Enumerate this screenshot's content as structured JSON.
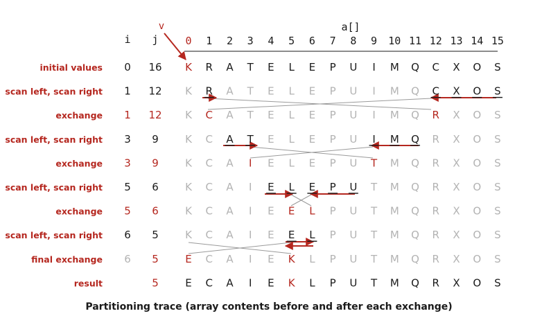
{
  "colors": {
    "red": "#b5271f",
    "gray": "#b3b3b3",
    "black": "#1a1a1a",
    "arrow": "#b5271f"
  },
  "header": {
    "array_label": "a[]",
    "v_label": "v",
    "i_label": "i",
    "j_label": "j",
    "indices": [
      "0",
      "1",
      "2",
      "3",
      "4",
      "5",
      "6",
      "7",
      "8",
      "9",
      "10",
      "11",
      "12",
      "13",
      "14",
      "15"
    ]
  },
  "rows": [
    {
      "label": "initial values",
      "i": "0",
      "j": "16",
      "ij_color": "black",
      "letters": [
        "K",
        "R",
        "A",
        "T",
        "E",
        "L",
        "E",
        "P",
        "U",
        "I",
        "M",
        "Q",
        "C",
        "X",
        "O",
        "S"
      ],
      "colors": [
        "red",
        "black",
        "black",
        "black",
        "black",
        "black",
        "black",
        "black",
        "black",
        "black",
        "black",
        "black",
        "black",
        "black",
        "black",
        "black"
      ],
      "underline": []
    },
    {
      "label": "scan left, scan right",
      "i": "1",
      "j": "12",
      "ij_color": "black",
      "letters": [
        "K",
        "R",
        "A",
        "T",
        "E",
        "L",
        "E",
        "P",
        "U",
        "I",
        "M",
        "Q",
        "C",
        "X",
        "O",
        "S"
      ],
      "colors": [
        "gray",
        "black",
        "gray",
        "gray",
        "gray",
        "gray",
        "gray",
        "gray",
        "gray",
        "gray",
        "gray",
        "gray",
        "black",
        "black",
        "black",
        "black"
      ],
      "underline": [
        1,
        12,
        13,
        14,
        15
      ]
    },
    {
      "label": "exchange",
      "i": "1",
      "j": "12",
      "ij_color": "red",
      "letters": [
        "K",
        "C",
        "A",
        "T",
        "E",
        "L",
        "E",
        "P",
        "U",
        "I",
        "M",
        "Q",
        "R",
        "X",
        "O",
        "S"
      ],
      "colors": [
        "gray",
        "red",
        "gray",
        "gray",
        "gray",
        "gray",
        "gray",
        "gray",
        "gray",
        "gray",
        "gray",
        "gray",
        "red",
        "gray",
        "gray",
        "gray"
      ],
      "underline": []
    },
    {
      "label": "scan left, scan right",
      "i": "3",
      "j": "9",
      "ij_color": "black",
      "letters": [
        "K",
        "C",
        "A",
        "T",
        "E",
        "L",
        "E",
        "P",
        "U",
        "I",
        "M",
        "Q",
        "R",
        "X",
        "O",
        "S"
      ],
      "colors": [
        "gray",
        "gray",
        "black",
        "black",
        "gray",
        "gray",
        "gray",
        "gray",
        "gray",
        "black",
        "black",
        "black",
        "gray",
        "gray",
        "gray",
        "gray"
      ],
      "underline": [
        2,
        3,
        9,
        10,
        11
      ]
    },
    {
      "label": "exchange",
      "i": "3",
      "j": "9",
      "ij_color": "red",
      "letters": [
        "K",
        "C",
        "A",
        "I",
        "E",
        "L",
        "E",
        "P",
        "U",
        "T",
        "M",
        "Q",
        "R",
        "X",
        "O",
        "S"
      ],
      "colors": [
        "gray",
        "gray",
        "gray",
        "red",
        "gray",
        "gray",
        "gray",
        "gray",
        "gray",
        "red",
        "gray",
        "gray",
        "gray",
        "gray",
        "gray",
        "gray"
      ],
      "underline": []
    },
    {
      "label": "scan left, scan right",
      "i": "5",
      "j": "6",
      "ij_color": "black",
      "letters": [
        "K",
        "C",
        "A",
        "I",
        "E",
        "L",
        "E",
        "P",
        "U",
        "T",
        "M",
        "Q",
        "R",
        "X",
        "O",
        "S"
      ],
      "colors": [
        "gray",
        "gray",
        "gray",
        "gray",
        "black",
        "black",
        "black",
        "black",
        "black",
        "gray",
        "gray",
        "gray",
        "gray",
        "gray",
        "gray",
        "gray"
      ],
      "underline": [
        4,
        5,
        6,
        7,
        8
      ]
    },
    {
      "label": "exchange",
      "i": "5",
      "j": "6",
      "ij_color": "red",
      "letters": [
        "K",
        "C",
        "A",
        "I",
        "E",
        "E",
        "L",
        "P",
        "U",
        "T",
        "M",
        "Q",
        "R",
        "X",
        "O",
        "S"
      ],
      "colors": [
        "gray",
        "gray",
        "gray",
        "gray",
        "gray",
        "red",
        "red",
        "gray",
        "gray",
        "gray",
        "gray",
        "gray",
        "gray",
        "gray",
        "gray",
        "gray"
      ],
      "underline": []
    },
    {
      "label": "scan left, scan right",
      "i": "6",
      "j": "5",
      "ij_color": "black",
      "letters": [
        "K",
        "C",
        "A",
        "I",
        "E",
        "E",
        "L",
        "P",
        "U",
        "T",
        "M",
        "Q",
        "R",
        "X",
        "O",
        "S"
      ],
      "colors": [
        "gray",
        "gray",
        "gray",
        "gray",
        "gray",
        "black",
        "black",
        "gray",
        "gray",
        "gray",
        "gray",
        "gray",
        "gray",
        "gray",
        "gray",
        "gray"
      ],
      "underline": [
        5,
        6
      ]
    },
    {
      "label": "final exchange",
      "i": "6",
      "j": "5",
      "ij_color": "split",
      "letters": [
        "E",
        "C",
        "A",
        "I",
        "E",
        "K",
        "L",
        "P",
        "U",
        "T",
        "M",
        "Q",
        "R",
        "X",
        "O",
        "S"
      ],
      "colors": [
        "red",
        "gray",
        "gray",
        "gray",
        "gray",
        "red",
        "gray",
        "gray",
        "gray",
        "gray",
        "gray",
        "gray",
        "gray",
        "gray",
        "gray",
        "gray"
      ],
      "underline": []
    },
    {
      "label": "result",
      "i": "",
      "j": "5",
      "ij_color": "red",
      "letters": [
        "E",
        "C",
        "A",
        "I",
        "E",
        "K",
        "L",
        "P",
        "U",
        "T",
        "M",
        "Q",
        "R",
        "X",
        "O",
        "S"
      ],
      "colors": [
        "black",
        "black",
        "black",
        "black",
        "black",
        "red",
        "black",
        "black",
        "black",
        "black",
        "black",
        "black",
        "black",
        "black",
        "black",
        "black"
      ],
      "underline": []
    }
  ],
  "caption": "Partitioning trace (array contents before and after each exchange)"
}
